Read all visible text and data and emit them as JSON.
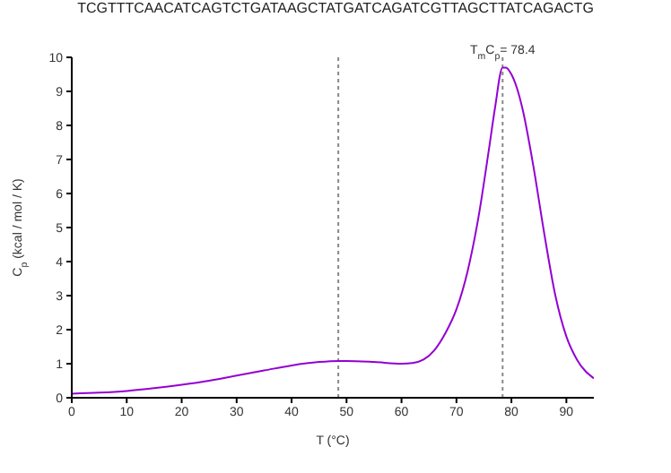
{
  "chart_data": {
    "type": "line",
    "title": "TCGTTTCAACATCAGTCTGATAAGCTATGATCAGATCGTTAGCTTATCAGACTG",
    "xlabel": "T (°C)",
    "ylabel": "C$_{p}$ (kcal / mol / K)",
    "x": [
      0,
      5,
      10,
      15,
      20,
      25,
      30,
      35,
      40,
      45,
      48.5,
      50,
      55,
      60,
      62,
      64,
      66,
      68,
      70,
      72,
      74,
      76,
      77,
      78.4,
      79,
      80,
      81,
      82,
      84,
      86,
      88,
      90,
      92,
      95
    ],
    "series": [
      {
        "color": "#9400d3",
        "values": [
          0.12,
          0.15,
          0.2,
          0.28,
          0.38,
          0.5,
          0.65,
          0.8,
          0.95,
          1.05,
          1.08,
          1.08,
          1.05,
          1.0,
          1.02,
          1.12,
          1.4,
          1.9,
          2.6,
          3.7,
          5.3,
          7.4,
          8.5,
          9.7,
          9.7,
          9.5,
          9.1,
          8.5,
          6.8,
          4.8,
          3.0,
          1.8,
          1.1,
          0.57
        ]
      }
    ],
    "xlim": [
      0,
      95
    ],
    "ylim": [
      0,
      10
    ],
    "xticks": [
      0,
      10,
      20,
      30,
      40,
      50,
      60,
      70,
      80,
      90
    ],
    "yticks": [
      0,
      1,
      2,
      3,
      4,
      5,
      6,
      7,
      8,
      9,
      10
    ],
    "ref_lines": [
      {
        "axis": "x",
        "value": 48.5,
        "color": "#888888",
        "line_style": "dotted"
      },
      {
        "axis": "x",
        "value": 78.4,
        "label": "T$_{m}$C$_{p}$= 78.4",
        "color": "#888888",
        "line_style": "dotted"
      }
    ],
    "grid": false,
    "legend": false,
    "marker": "none",
    "line_style": "solid"
  }
}
